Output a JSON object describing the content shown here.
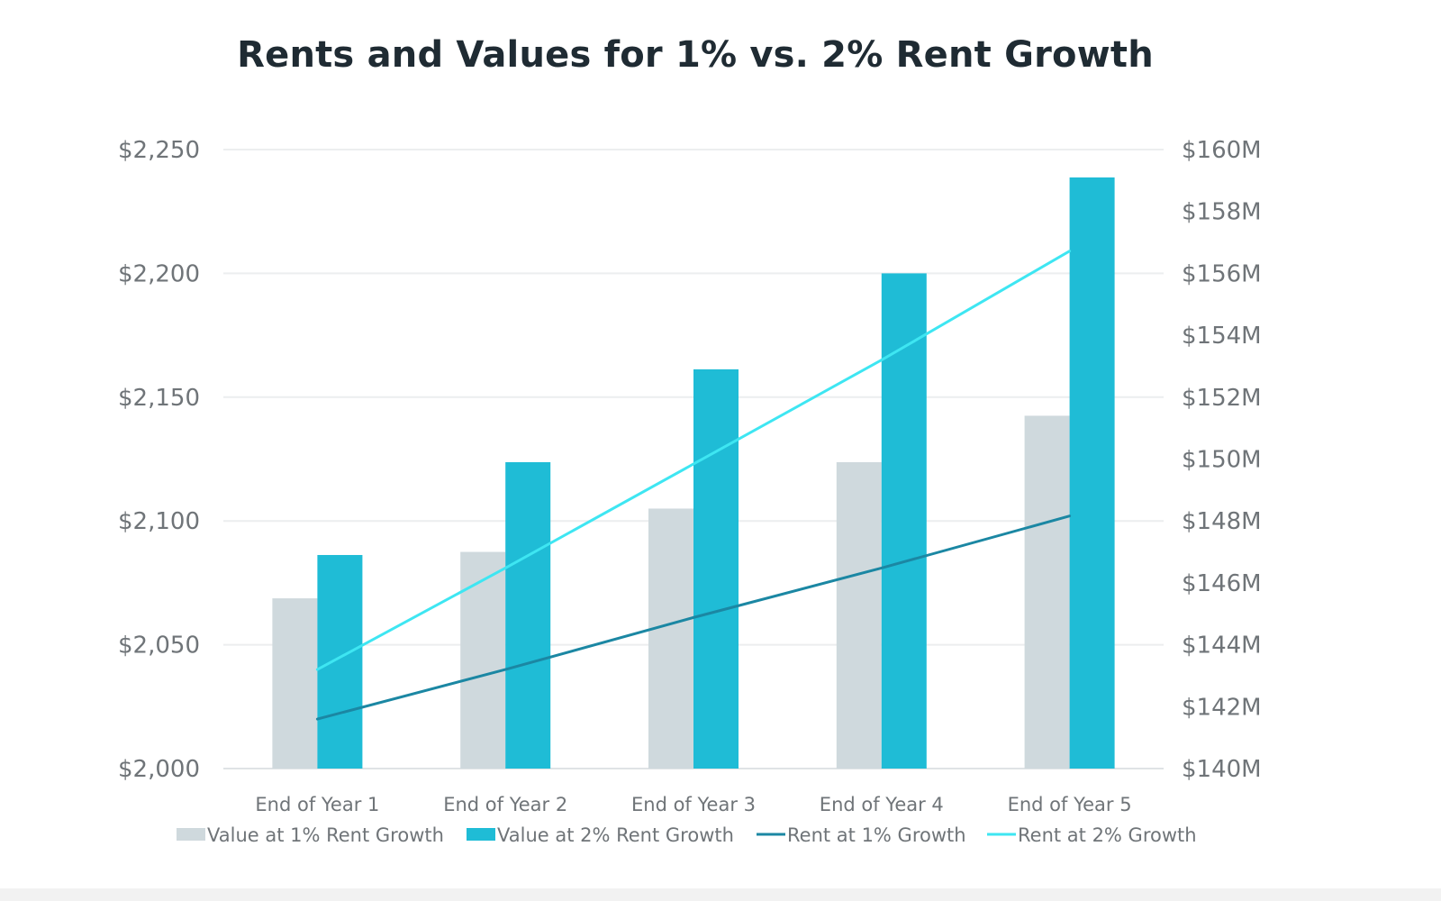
{
  "chart_data": {
    "type": "bar",
    "title": "Rents and Values for 1% vs. 2% Rent Growth",
    "categories": [
      "End of Year 1",
      "End of Year 2",
      "End of Year 3",
      "End of Year 4",
      "End of Year 5"
    ],
    "y_left": {
      "label": "",
      "ylim": [
        2000,
        2250
      ],
      "ticks": [
        2000,
        2050,
        2100,
        2150,
        2200,
        2250
      ],
      "tick_labels": [
        "$2,000",
        "$2,050",
        "$2,100",
        "$2,150",
        "$2,200",
        "$2,250"
      ]
    },
    "y_right": {
      "label": "",
      "ylim": [
        140,
        160
      ],
      "ticks": [
        140,
        142,
        144,
        146,
        148,
        150,
        152,
        154,
        156,
        158,
        160
      ],
      "tick_labels": [
        "$140M",
        "$142M",
        "$144M",
        "$146M",
        "$148M",
        "$150M",
        "$152M",
        "$154M",
        "$156M",
        "$158M",
        "$160M"
      ]
    },
    "series": [
      {
        "name": "Value at 1% Rent Growth",
        "kind": "bar",
        "axis": "right",
        "color": "#cfd9dd",
        "values": [
          145.5,
          147.0,
          148.4,
          149.9,
          151.4
        ]
      },
      {
        "name": "Value at 2% Rent Growth",
        "kind": "bar",
        "axis": "right",
        "color": "#1fbcd6",
        "values": [
          146.9,
          149.9,
          152.9,
          156.0,
          159.1
        ]
      },
      {
        "name": "Rent at 1% Growth",
        "kind": "line",
        "axis": "left",
        "color": "#1b87a3",
        "values": [
          2020,
          2040,
          2061,
          2081,
          2102
        ]
      },
      {
        "name": "Rent at 2% Growth",
        "kind": "line",
        "axis": "left",
        "color": "#3ee6f2",
        "values": [
          2040,
          2081,
          2123,
          2165,
          2209
        ]
      }
    ],
    "grid": true,
    "legend_position": "bottom"
  }
}
